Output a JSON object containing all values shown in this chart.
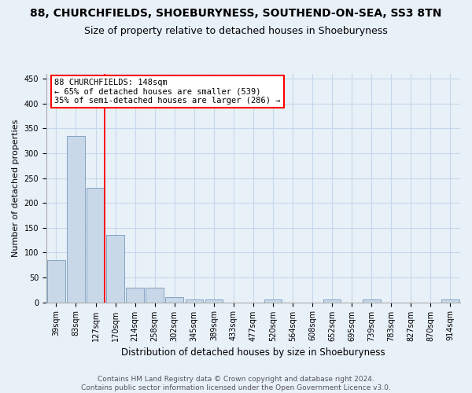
{
  "title": "88, CHURCHFIELDS, SHOEBURYNESS, SOUTHEND-ON-SEA, SS3 8TN",
  "subtitle": "Size of property relative to detached houses in Shoeburyness",
  "xlabel": "Distribution of detached houses by size in Shoeburyness",
  "ylabel": "Number of detached properties",
  "categories": [
    "39sqm",
    "83sqm",
    "127sqm",
    "170sqm",
    "214sqm",
    "258sqm",
    "302sqm",
    "345sqm",
    "389sqm",
    "433sqm",
    "477sqm",
    "520sqm",
    "564sqm",
    "608sqm",
    "652sqm",
    "695sqm",
    "739sqm",
    "783sqm",
    "827sqm",
    "870sqm",
    "914sqm"
  ],
  "values": [
    85,
    335,
    230,
    135,
    30,
    30,
    10,
    5,
    5,
    0,
    0,
    5,
    0,
    0,
    5,
    0,
    5,
    0,
    0,
    0,
    5
  ],
  "bar_color": "#c8d8e8",
  "bar_edge_color": "#7799bb",
  "grid_color": "#c5d8eb",
  "background_color": "#e8f0f8",
  "property_label": "88 CHURCHFIELDS: 148sqm",
  "annotation_line1": "← 65% of detached houses are smaller (539)",
  "annotation_line2": "35% of semi-detached houses are larger (286) →",
  "footer_line1": "Contains HM Land Registry data © Crown copyright and database right 2024.",
  "footer_line2": "Contains public sector information licensed under the Open Government Licence v3.0.",
  "ylim": [
    0,
    460
  ],
  "yticks": [
    0,
    50,
    100,
    150,
    200,
    250,
    300,
    350,
    400,
    450
  ],
  "title_fontsize": 10,
  "subtitle_fontsize": 9,
  "xlabel_fontsize": 8.5,
  "ylabel_fontsize": 8,
  "tick_fontsize": 7,
  "annotation_fontsize": 7.5,
  "footer_fontsize": 6.5,
  "vline_pos": 2.477
}
